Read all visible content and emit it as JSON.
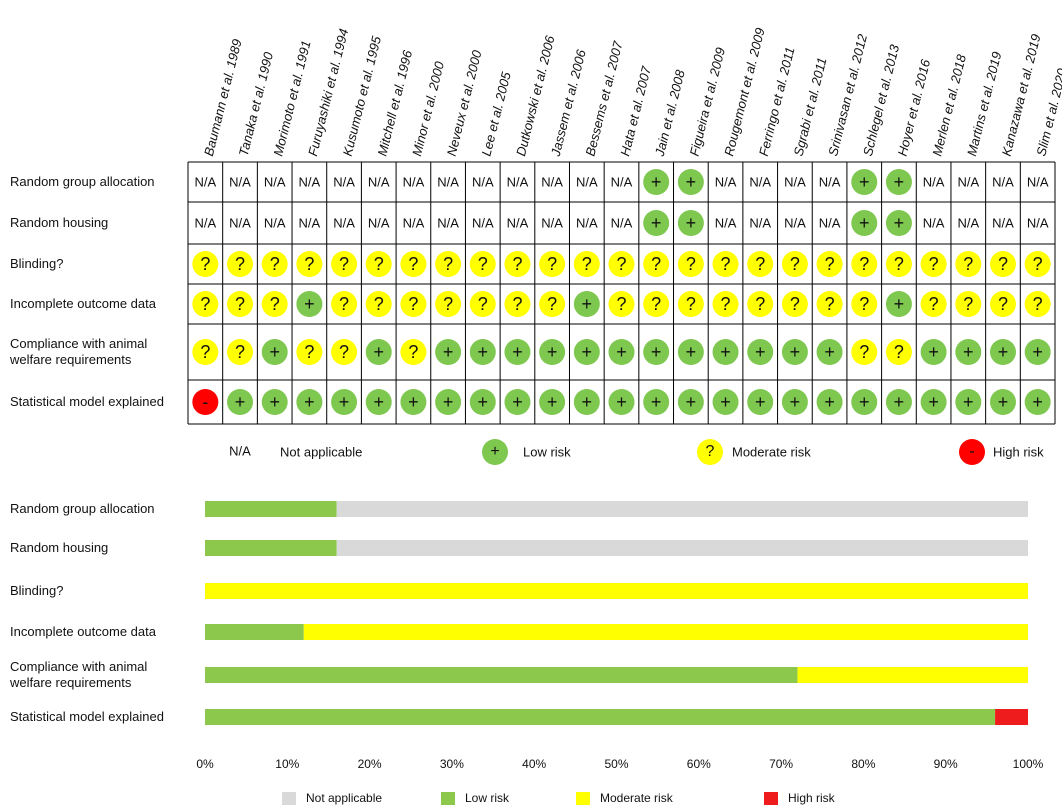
{
  "table": {
    "studies": [
      "Baumann et al. 1989",
      "Tanaka et al. 1990",
      "Morimoto et al. 1991",
      "Furuyashiki et al. 1994",
      "Kusumoto et al. 1995",
      "Mitchell et al. 1996",
      "Minor et al. 2000",
      "Neveux et al. 2000",
      "Lee et al. 2005",
      "Dutkowski et al. 2006",
      "Jassem et al. 2006",
      "Bessems et al. 2007",
      "Hata et al. 2007",
      "Jain et al. 2008",
      "Figueira et al. 2009",
      "Rougemont et al. 2009",
      "Ferringo et al. 2011",
      "Sgrabi et al. 2011",
      "Srinivasan et al. 2012",
      "Schlegel et al. 2013",
      "Hoyer et al. 2016",
      "Merlen et al. 2018",
      "Martins et al. 2019",
      "Kanazawa et al. 2019",
      "Slim et al. 2020"
    ],
    "domains": [
      "Random group allocation",
      "Random housing",
      "Blinding?",
      "Incomplete outcome data",
      "Compliance with animal welfare requirements",
      "Statistical model explained"
    ],
    "cells": [
      [
        "N/A",
        "N/A",
        "N/A",
        "N/A",
        "N/A",
        "N/A",
        "N/A",
        "N/A",
        "N/A",
        "N/A",
        "N/A",
        "N/A",
        "N/A",
        "+",
        "+",
        "N/A",
        "N/A",
        "N/A",
        "N/A",
        "+",
        "+",
        "N/A",
        "N/A",
        "N/A",
        "N/A"
      ],
      [
        "N/A",
        "N/A",
        "N/A",
        "N/A",
        "N/A",
        "N/A",
        "N/A",
        "N/A",
        "N/A",
        "N/A",
        "N/A",
        "N/A",
        "N/A",
        "+",
        "+",
        "N/A",
        "N/A",
        "N/A",
        "N/A",
        "+",
        "+",
        "N/A",
        "N/A",
        "N/A",
        "N/A"
      ],
      [
        "?",
        "?",
        "?",
        "?",
        "?",
        "?",
        "?",
        "?",
        "?",
        "?",
        "?",
        "?",
        "?",
        "?",
        "?",
        "?",
        "?",
        "?",
        "?",
        "?",
        "?",
        "?",
        "?",
        "?",
        "?"
      ],
      [
        "?",
        "?",
        "?",
        "+",
        "?",
        "?",
        "?",
        "?",
        "?",
        "?",
        "?",
        "+",
        "?",
        "?",
        "?",
        "?",
        "?",
        "?",
        "?",
        "?",
        "+",
        "?",
        "?",
        "?",
        "?"
      ],
      [
        "?",
        "?",
        "+",
        "?",
        "?",
        "+",
        "?",
        "+",
        "+",
        "+",
        "+",
        "+",
        "+",
        "+",
        "+",
        "+",
        "+",
        "+",
        "+",
        "?",
        "?",
        "+",
        "+",
        "+",
        "+"
      ],
      [
        "-",
        "+",
        "+",
        "+",
        "+",
        "+",
        "+",
        "+",
        "+",
        "+",
        "+",
        "+",
        "+",
        "+",
        "+",
        "+",
        "+",
        "+",
        "+",
        "+",
        "+",
        "+",
        "+",
        "+",
        "+"
      ]
    ]
  },
  "legend": [
    {
      "symbol": "N/A",
      "label": "Not applicable"
    },
    {
      "symbol": "+",
      "label": "Low risk",
      "color": "#7ec850"
    },
    {
      "symbol": "?",
      "label": "Moderate risk",
      "color": "#ffff00"
    },
    {
      "symbol": "-",
      "label": "High risk",
      "color": "#ff0000"
    }
  ],
  "chart_data": {
    "type": "bar",
    "orientation": "horizontal",
    "stacked": true,
    "categories": [
      "Random group allocation",
      "Random housing",
      "Blinding?",
      "Incomplete outcome data",
      "Compliance with animal welfare requirements",
      "Statistical model explained"
    ],
    "series": [
      {
        "name": "Not applicable",
        "color": "#d9d9d9",
        "values": [
          84,
          84,
          0,
          0,
          0,
          0
        ]
      },
      {
        "name": "Low risk",
        "color": "#8cc84b",
        "values": [
          16,
          16,
          0,
          12,
          72,
          96
        ]
      },
      {
        "name": "Moderate risk",
        "color": "#ffff00",
        "values": [
          0,
          0,
          100,
          88,
          28,
          0
        ]
      },
      {
        "name": "High risk",
        "color": "#ee1c1c",
        "values": [
          0,
          0,
          0,
          0,
          0,
          4
        ]
      }
    ],
    "xlim": [
      0,
      100
    ],
    "xticks": [
      {
        "value": 0,
        "label": "0%"
      },
      {
        "value": 10,
        "label": "10%"
      },
      {
        "value": 20,
        "label": "20%"
      },
      {
        "value": 30,
        "label": "30%"
      },
      {
        "value": 40,
        "label": "40%"
      },
      {
        "value": 50,
        "label": "50%"
      },
      {
        "value": 60,
        "label": "60%"
      },
      {
        "value": 70,
        "label": "70%"
      },
      {
        "value": 80,
        "label": "80%"
      },
      {
        "value": 90,
        "label": "90%"
      },
      {
        "value": 100,
        "label": "100%"
      }
    ]
  }
}
